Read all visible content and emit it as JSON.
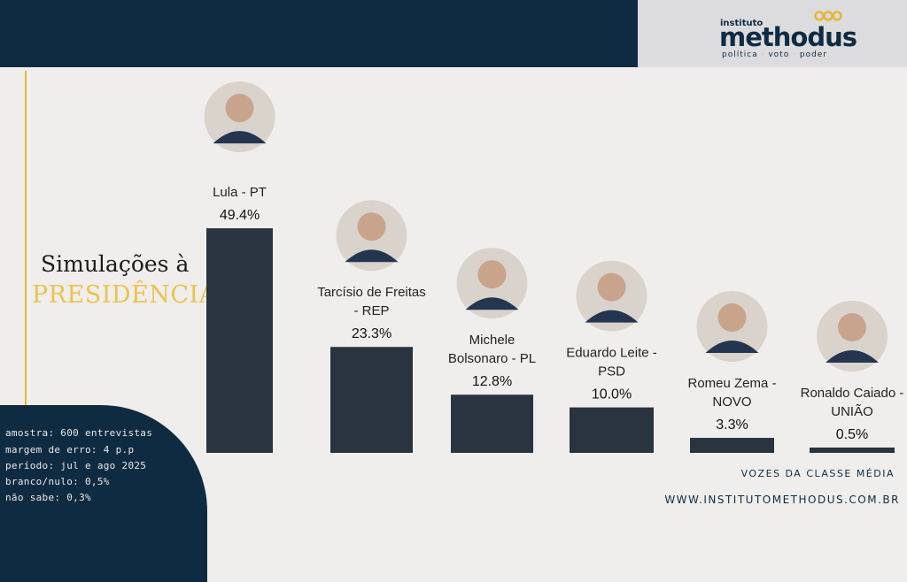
{
  "brand": {
    "small": "instituto",
    "name": "methodus",
    "tagline_parts": [
      "política",
      "voto",
      "poder"
    ]
  },
  "title": {
    "line1": "Simulações à",
    "line2": "PRESIDÊNCIA"
  },
  "chart_data": {
    "type": "bar",
    "categories": [
      [
        "Lula - PT"
      ],
      [
        "Tarcísio de Freitas",
        "- REP"
      ],
      [
        "Michele",
        "Bolsonaro - PL"
      ],
      [
        "Eduardo Leite -",
        "PSD"
      ],
      [
        "Romeu Zema -",
        "NOVO"
      ],
      [
        "Ronaldo Caiado -",
        "UNIÃO"
      ]
    ],
    "values": [
      49.4,
      23.3,
      12.8,
      10.0,
      3.3,
      0.5
    ],
    "value_labels": [
      "49.4%",
      "23.3%",
      "12.8%",
      "10.0%",
      "3.3%",
      "0.5%"
    ],
    "bar_color": "#2a3340",
    "ylim": [
      0,
      50
    ]
  },
  "info": [
    "amostra: 600 entrevistas",
    "margem de erro: 4 p.p",
    "período: jul e ago 2025",
    "branco/nulo: 0,5%",
    "não sabe: 0,3%"
  ],
  "footer": {
    "line1": "VOZES DA CLASSE MÉDIA",
    "url": "WWW.INSTITUTOMETHODUS.COM.BR"
  },
  "colors": {
    "navy": "#0f2b42",
    "gold": "#e8b636",
    "background": "#f0eeec"
  }
}
